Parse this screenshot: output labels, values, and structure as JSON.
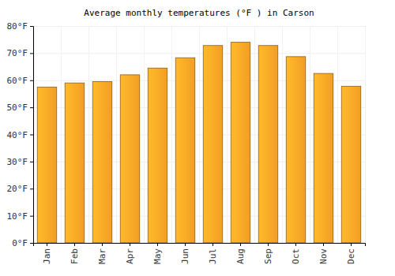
{
  "chart_data": {
    "type": "bar",
    "title": "Average monthly temperatures (°F ) in Carson",
    "categories": [
      "Jan",
      "Feb",
      "Mar",
      "Apr",
      "May",
      "Jun",
      "Jul",
      "Aug",
      "Sep",
      "Oct",
      "Nov",
      "Dec"
    ],
    "values": [
      57.5,
      59,
      59.5,
      62,
      64.5,
      68.3,
      72.8,
      74,
      72.8,
      68.7,
      62.5,
      57.8
    ],
    "color": "#ffa726",
    "ylim": [
      0,
      80
    ],
    "yticks": [
      {
        "value": 0,
        "label": "0°F"
      },
      {
        "value": 10,
        "label": "10°F"
      },
      {
        "value": 20,
        "label": "20°F"
      },
      {
        "value": 30,
        "label": "30°F"
      },
      {
        "value": 40,
        "label": "40°F"
      },
      {
        "value": 50,
        "label": "50°F"
      },
      {
        "value": 60,
        "label": "60°F"
      },
      {
        "value": 70,
        "label": "70°F"
      },
      {
        "value": 80,
        "label": "80°F"
      }
    ],
    "grid": true
  }
}
